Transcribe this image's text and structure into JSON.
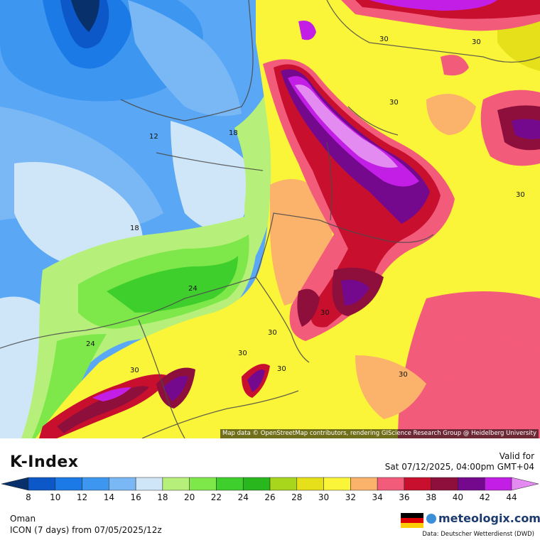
{
  "title": "K-Index",
  "valid_label": "Valid for",
  "valid_time": "Sat 07/12/2025, 04:00pm GMT+04",
  "region": "Oman",
  "model_run": "ICON (7 days) from 07/05/2025/12z",
  "brand": "meteologix.com",
  "data_source": "Data: Deutscher Wetterdienst (DWD)",
  "attribution": "Map data © OpenStreetMap contributors, rendering GIScience Research Group @ Heidelberg University",
  "colorbar": {
    "ticks": [
      "8",
      "10",
      "12",
      "14",
      "16",
      "18",
      "20",
      "22",
      "24",
      "26",
      "28",
      "30",
      "32",
      "34",
      "36",
      "38",
      "40",
      "42",
      "44"
    ],
    "colors": [
      "#08306b",
      "#0d58c8",
      "#1b7ae6",
      "#3d96f0",
      "#7ab8f5",
      "#cfe6f9",
      "#b6f07a",
      "#7ee84a",
      "#3fcf2c",
      "#28b81e",
      "#a8d61c",
      "#e6e01a",
      "#fbf53a",
      "#fbb26b",
      "#f35b7a",
      "#c8102e",
      "#8e0f3c",
      "#74098e",
      "#c31ee6",
      "#e48bf2"
    ]
  },
  "contour_labels": [
    "30",
    "30",
    "12",
    "18",
    "18",
    "30",
    "24",
    "30",
    "30",
    "30",
    "24",
    "30",
    "30",
    "30",
    "30"
  ]
}
